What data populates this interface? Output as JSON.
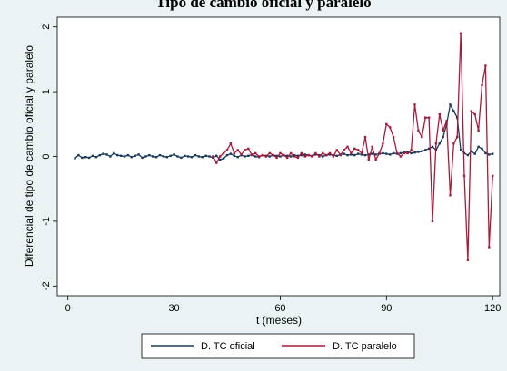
{
  "chart_data": {
    "type": "line",
    "title": "Tipo de cambio oficial y paralelo",
    "xlabel": "t (meses)",
    "ylabel": "Diferencial de tipo de cambio oficial y paralelo",
    "xlim": [
      -3,
      122
    ],
    "ylim": [
      -2.15,
      2.15
    ],
    "xticks": [
      0,
      30,
      60,
      90,
      120
    ],
    "yticks": [
      -2,
      -1,
      0,
      1,
      2
    ],
    "legend_position": "bottom",
    "grid": "none",
    "series": [
      {
        "name": "D. TC oficial",
        "color": "#1a3a5c",
        "x": [
          2,
          3,
          4,
          5,
          6,
          7,
          8,
          9,
          10,
          11,
          12,
          13,
          14,
          15,
          16,
          17,
          18,
          19,
          20,
          21,
          22,
          23,
          24,
          25,
          26,
          27,
          28,
          29,
          30,
          31,
          32,
          33,
          34,
          35,
          36,
          37,
          38,
          39,
          40,
          41,
          42,
          43,
          44,
          45,
          46,
          47,
          48,
          49,
          50,
          51,
          52,
          53,
          54,
          55,
          56,
          57,
          58,
          59,
          60,
          61,
          62,
          63,
          64,
          65,
          66,
          67,
          68,
          69,
          70,
          71,
          72,
          73,
          74,
          75,
          76,
          77,
          78,
          79,
          80,
          81,
          82,
          83,
          84,
          85,
          86,
          87,
          88,
          89,
          90,
          91,
          92,
          93,
          94,
          95,
          96,
          97,
          98,
          99,
          100,
          101,
          102,
          103,
          104,
          105,
          106,
          107,
          108,
          109,
          110,
          111,
          112,
          113,
          114,
          115,
          116,
          117,
          118,
          119,
          120
        ],
        "values": [
          -0.03,
          0.02,
          -0.02,
          -0.01,
          -0.02,
          0.01,
          -0.01,
          0.02,
          0.04,
          0.03,
          0.0,
          0.05,
          0.02,
          0.01,
          0.0,
          0.02,
          -0.01,
          0.01,
          0.03,
          -0.02,
          0.0,
          0.02,
          0.0,
          -0.01,
          0.02,
          0.0,
          -0.01,
          0.01,
          0.03,
          0.0,
          -0.02,
          0.01,
          0.0,
          -0.01,
          0.02,
          0.0,
          -0.01,
          0.01,
          0.0,
          -0.02,
          0.01,
          -0.05,
          -0.03,
          0.02,
          0.04,
          0.01,
          -0.01,
          0.02,
          0.0,
          0.01,
          0.03,
          0.0,
          -0.01,
          0.02,
          0.01,
          0.0,
          0.02,
          0.01,
          0.0,
          0.02,
          0.01,
          0.0,
          0.02,
          0.01,
          0.02,
          0.03,
          0.02,
          0.01,
          0.03,
          0.02,
          0.0,
          0.02,
          0.03,
          0.02,
          0.01,
          0.03,
          0.04,
          0.02,
          0.03,
          0.02,
          0.04,
          0.03,
          0.02,
          0.03,
          0.04,
          0.03,
          0.04,
          0.05,
          0.04,
          0.03,
          0.05,
          0.04,
          0.05,
          0.06,
          0.07,
          0.05,
          0.06,
          0.07,
          0.08,
          0.1,
          0.12,
          0.15,
          0.1,
          0.2,
          0.3,
          0.5,
          0.8,
          0.7,
          0.6,
          0.1,
          0.05,
          0.02,
          0.08,
          0.04,
          0.15,
          0.12,
          0.05,
          0.03,
          0.04
        ]
      },
      {
        "name": "D. TC paralelo",
        "color": "#a8193a",
        "x": [
          41,
          42,
          43,
          44,
          45,
          46,
          47,
          48,
          49,
          50,
          51,
          52,
          53,
          54,
          55,
          56,
          57,
          58,
          59,
          60,
          61,
          62,
          63,
          64,
          65,
          66,
          67,
          68,
          69,
          70,
          71,
          72,
          73,
          74,
          75,
          76,
          77,
          78,
          79,
          80,
          81,
          82,
          83,
          84,
          85,
          86,
          87,
          88,
          89,
          90,
          91,
          92,
          93,
          94,
          95,
          96,
          97,
          98,
          99,
          100,
          101,
          102,
          103,
          104,
          105,
          106,
          107,
          108,
          109,
          110,
          111,
          112,
          113,
          114,
          115,
          116,
          117,
          118,
          119,
          120
        ],
        "values": [
          0.0,
          -0.1,
          0.0,
          0.05,
          0.1,
          0.2,
          0.05,
          0.1,
          0.03,
          0.1,
          0.12,
          0.02,
          0.05,
          0.0,
          0.02,
          0.0,
          0.05,
          0.02,
          -0.02,
          0.05,
          0.02,
          -0.02,
          0.05,
          0.0,
          -0.02,
          0.05,
          0.0,
          0.02,
          0.0,
          0.05,
          0.0,
          0.05,
          0.02,
          0.05,
          0.0,
          0.1,
          0.02,
          0.1,
          0.15,
          0.05,
          0.12,
          0.1,
          0.05,
          0.3,
          -0.05,
          0.15,
          -0.05,
          0.05,
          0.2,
          0.5,
          0.45,
          0.3,
          0.05,
          0.0,
          0.05,
          0.05,
          0.1,
          0.8,
          0.4,
          0.3,
          0.6,
          0.6,
          -1.0,
          0.2,
          0.65,
          0.4,
          0.55,
          -0.6,
          0.2,
          0.3,
          1.9,
          -0.3,
          -1.6,
          0.7,
          0.65,
          0.4,
          1.1,
          1.4,
          -1.4,
          -0.3
        ]
      }
    ]
  }
}
